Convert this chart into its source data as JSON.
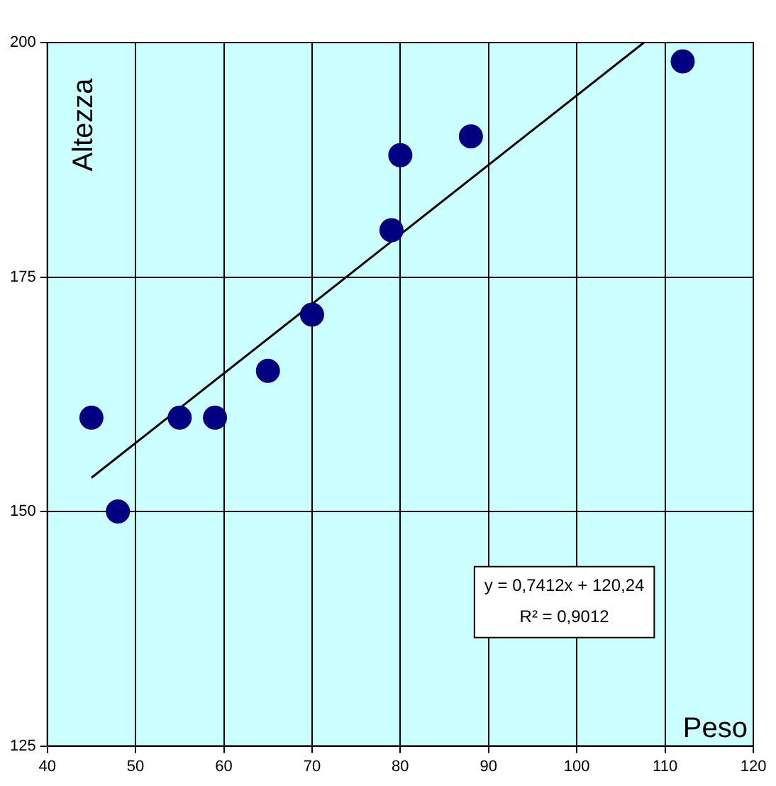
{
  "chart_data": {
    "type": "scatter",
    "xlabel": "Peso",
    "ylabel": "Altezza",
    "xlim": [
      40,
      120
    ],
    "xticks": [
      40,
      50,
      60,
      70,
      80,
      90,
      100,
      110,
      120
    ],
    "ylim": [
      125,
      200
    ],
    "yticks": [
      125,
      150,
      175,
      200
    ],
    "grid": true,
    "legend": false,
    "marker": "circle",
    "series": [
      {
        "color": "#000080",
        "x": [
          45,
          48,
          55,
          59,
          65,
          70,
          79,
          80,
          88,
          112
        ],
        "values": [
          160,
          150,
          160,
          160,
          165,
          171,
          180,
          188,
          190,
          198
        ]
      },
      {
        "type": "line",
        "color": "#000000",
        "marker": "none",
        "x": [
          45,
          107.6
        ],
        "values": [
          153.6,
          200
        ]
      }
    ],
    "annotations": [
      "y = 0,7412x + 120,24",
      "R² = 0,9012"
    ]
  }
}
